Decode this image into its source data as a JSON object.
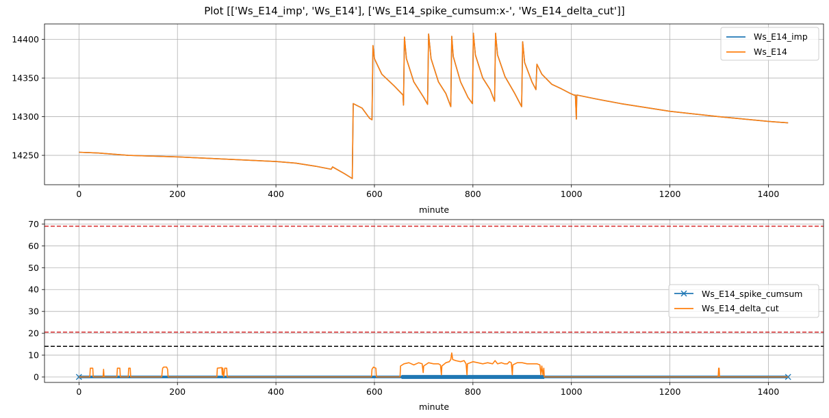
{
  "title": "Plot [['Ws_E14_imp', 'Ws_E14'], ['Ws_E14_spike_cumsum:x-', 'Ws_E14_delta_cut']]",
  "colors": {
    "blue": "#1f77b4",
    "orange": "#ff7f0e",
    "red": "#d62728",
    "black": "#000000",
    "grid": "#b0b0b0"
  },
  "chart_data": [
    {
      "type": "line",
      "xlabel": "minute",
      "ylabel": "",
      "xlim": [
        -70,
        1512
      ],
      "ylim": [
        14212,
        14420
      ],
      "xticks": [
        0,
        200,
        400,
        600,
        800,
        1000,
        1200,
        1400
      ],
      "yticks": [
        14250,
        14300,
        14350,
        14400
      ],
      "grid": true,
      "legend": "upper right",
      "series": [
        {
          "name": "Ws_E14_imp",
          "color": "#1f77b4",
          "points": [
            [
              0,
              14254
            ],
            [
              40,
              14253
            ],
            [
              100,
              14250
            ],
            [
              200,
              14248
            ],
            [
              300,
              14245
            ],
            [
              400,
              14242
            ],
            [
              440,
              14240
            ],
            [
              480,
              14236
            ],
            [
              512,
              14232
            ],
            [
              515,
              14235
            ],
            [
              540,
              14226
            ],
            [
              555,
              14220
            ],
            [
              557,
              14317
            ],
            [
              575,
              14311
            ],
            [
              590,
              14298
            ],
            [
              595,
              14296
            ],
            [
              597,
              14392
            ],
            [
              600,
              14375
            ],
            [
              615,
              14355
            ],
            [
              640,
              14340
            ],
            [
              658,
              14328
            ],
            [
              659,
              14315
            ],
            [
              661,
              14403
            ],
            [
              665,
              14375
            ],
            [
              680,
              14345
            ],
            [
              700,
              14325
            ],
            [
              708,
              14316
            ],
            [
              710,
              14407
            ],
            [
              715,
              14375
            ],
            [
              730,
              14345
            ],
            [
              745,
              14330
            ],
            [
              755,
              14313
            ],
            [
              757,
              14404
            ],
            [
              760,
              14378
            ],
            [
              775,
              14345
            ],
            [
              790,
              14325
            ],
            [
              799,
              14317
            ],
            [
              801,
              14408
            ],
            [
              805,
              14380
            ],
            [
              820,
              14350
            ],
            [
              835,
              14335
            ],
            [
              844,
              14320
            ],
            [
              846,
              14408
            ],
            [
              850,
              14380
            ],
            [
              865,
              14352
            ],
            [
              885,
              14330
            ],
            [
              899,
              14313
            ],
            [
              901,
              14397
            ],
            [
              905,
              14370
            ],
            [
              920,
              14345
            ],
            [
              928,
              14335
            ],
            [
              930,
              14368
            ],
            [
              940,
              14355
            ],
            [
              960,
              14342
            ],
            [
              980,
              14336
            ],
            [
              995,
              14331
            ],
            [
              1005,
              14328
            ],
            [
              1008,
              14328
            ],
            [
              1010,
              14297
            ],
            [
              1011,
              14328
            ],
            [
              1050,
              14323
            ],
            [
              1100,
              14317
            ],
            [
              1200,
              14307
            ],
            [
              1300,
              14300
            ],
            [
              1400,
              14294
            ],
            [
              1440,
              14292
            ]
          ]
        },
        {
          "name": "Ws_E14",
          "color": "#ff7f0e",
          "points": [
            [
              0,
              14254
            ],
            [
              40,
              14253
            ],
            [
              100,
              14250
            ],
            [
              200,
              14248
            ],
            [
              300,
              14245
            ],
            [
              400,
              14242
            ],
            [
              440,
              14240
            ],
            [
              480,
              14236
            ],
            [
              512,
              14232
            ],
            [
              515,
              14235
            ],
            [
              540,
              14226
            ],
            [
              555,
              14220
            ],
            [
              557,
              14317
            ],
            [
              575,
              14311
            ],
            [
              590,
              14298
            ],
            [
              595,
              14296
            ],
            [
              597,
              14392
            ],
            [
              600,
              14375
            ],
            [
              615,
              14355
            ],
            [
              640,
              14340
            ],
            [
              658,
              14328
            ],
            [
              659,
              14315
            ],
            [
              661,
              14403
            ],
            [
              665,
              14375
            ],
            [
              680,
              14345
            ],
            [
              700,
              14325
            ],
            [
              708,
              14316
            ],
            [
              710,
              14407
            ],
            [
              715,
              14375
            ],
            [
              730,
              14345
            ],
            [
              745,
              14330
            ],
            [
              755,
              14313
            ],
            [
              757,
              14404
            ],
            [
              760,
              14378
            ],
            [
              775,
              14345
            ],
            [
              790,
              14325
            ],
            [
              799,
              14317
            ],
            [
              801,
              14408
            ],
            [
              805,
              14380
            ],
            [
              820,
              14350
            ],
            [
              835,
              14335
            ],
            [
              844,
              14320
            ],
            [
              846,
              14408
            ],
            [
              850,
              14380
            ],
            [
              865,
              14352
            ],
            [
              885,
              14330
            ],
            [
              899,
              14313
            ],
            [
              901,
              14397
            ],
            [
              905,
              14370
            ],
            [
              920,
              14345
            ],
            [
              928,
              14335
            ],
            [
              930,
              14368
            ],
            [
              940,
              14355
            ],
            [
              960,
              14342
            ],
            [
              980,
              14336
            ],
            [
              995,
              14331
            ],
            [
              1005,
              14328
            ],
            [
              1008,
              14328
            ],
            [
              1010,
              14297
            ],
            [
              1011,
              14328
            ],
            [
              1050,
              14323
            ],
            [
              1100,
              14317
            ],
            [
              1200,
              14307
            ],
            [
              1300,
              14300
            ],
            [
              1400,
              14294
            ],
            [
              1440,
              14292
            ]
          ]
        }
      ]
    },
    {
      "type": "line",
      "xlabel": "minute",
      "ylabel": "",
      "xlim": [
        -70,
        1512
      ],
      "ylim": [
        -2.5,
        72
      ],
      "xticks": [
        0,
        200,
        400,
        600,
        800,
        1000,
        1200,
        1400
      ],
      "yticks": [
        0,
        10,
        20,
        30,
        40,
        50,
        60,
        70
      ],
      "grid": true,
      "legend": "center right",
      "hlines": [
        {
          "y": 69,
          "color": "#d62728",
          "style": "dashed"
        },
        {
          "y": 20.5,
          "color": "#d62728",
          "style": "dashed"
        },
        {
          "y": 14,
          "color": "#000000",
          "style": "dashed"
        }
      ],
      "series": [
        {
          "name": "Ws_E14_spike_cumsum",
          "color": "#1f77b4",
          "marker": "x",
          "x_range": [
            0,
            1440
          ],
          "y": 0,
          "dense_x_range": [
            655,
            945
          ],
          "dense_y_range": [
            -0.5,
            0.5
          ]
        },
        {
          "name": "Ws_E14_delta_cut",
          "color": "#ff7f0e",
          "points": [
            [
              0,
              0
            ],
            [
              22,
              0
            ],
            [
              23,
              4
            ],
            [
              28,
              4
            ],
            [
              29,
              0
            ],
            [
              49,
              0
            ],
            [
              50,
              3.5
            ],
            [
              51,
              0
            ],
            [
              77,
              0
            ],
            [
              78,
              4
            ],
            [
              83,
              4
            ],
            [
              84,
              0
            ],
            [
              100,
              0
            ],
            [
              101,
              4
            ],
            [
              104,
              4
            ],
            [
              105,
              0
            ],
            [
              168,
              0
            ],
            [
              170,
              4
            ],
            [
              172,
              4.5
            ],
            [
              178,
              4.5
            ],
            [
              180,
              3.5
            ],
            [
              181,
              0
            ],
            [
              280,
              0
            ],
            [
              281,
              4
            ],
            [
              290,
              4.3
            ],
            [
              291,
              1
            ],
            [
              292,
              4
            ],
            [
              294,
              0
            ],
            [
              296,
              4
            ],
            [
              300,
              4
            ],
            [
              301,
              0
            ],
            [
              594,
              0
            ],
            [
              595,
              3.5
            ],
            [
              598,
              4.5
            ],
            [
              603,
              4
            ],
            [
              604,
              0
            ],
            [
              652,
              0
            ],
            [
              653,
              5
            ],
            [
              660,
              6
            ],
            [
              670,
              6.5
            ],
            [
              680,
              5.5
            ],
            [
              690,
              6.5
            ],
            [
              697,
              6
            ],
            [
              699,
              2
            ],
            [
              700,
              5
            ],
            [
              710,
              6.5
            ],
            [
              720,
              6
            ],
            [
              730,
              6
            ],
            [
              734,
              5.5
            ],
            [
              736,
              1
            ],
            [
              737,
              5
            ],
            [
              745,
              6.5
            ],
            [
              752,
              7
            ],
            [
              755,
              8
            ],
            [
              757,
              11
            ],
            [
              759,
              8
            ],
            [
              765,
              7.5
            ],
            [
              775,
              7
            ],
            [
              782,
              7.5
            ],
            [
              786,
              6
            ],
            [
              788,
              1
            ],
            [
              789,
              6
            ],
            [
              800,
              7
            ],
            [
              810,
              6.5
            ],
            [
              820,
              6
            ],
            [
              830,
              6.5
            ],
            [
              840,
              6
            ],
            [
              845,
              7.5
            ],
            [
              850,
              6
            ],
            [
              858,
              6.5
            ],
            [
              864,
              6
            ],
            [
              870,
              6
            ],
            [
              874,
              7
            ],
            [
              878,
              6.5
            ],
            [
              880,
              1
            ],
            [
              881,
              5.5
            ],
            [
              890,
              6.5
            ],
            [
              900,
              6.5
            ],
            [
              910,
              6
            ],
            [
              920,
              6
            ],
            [
              930,
              6
            ],
            [
              936,
              5.5
            ],
            [
              938,
              1
            ],
            [
              940,
              5
            ],
            [
              942,
              1
            ],
            [
              944,
              4
            ],
            [
              945,
              0
            ],
            [
              1298,
              0
            ],
            [
              1299,
              4
            ],
            [
              1300,
              4
            ],
            [
              1301,
              0
            ],
            [
              1440,
              0
            ]
          ]
        }
      ]
    }
  ]
}
